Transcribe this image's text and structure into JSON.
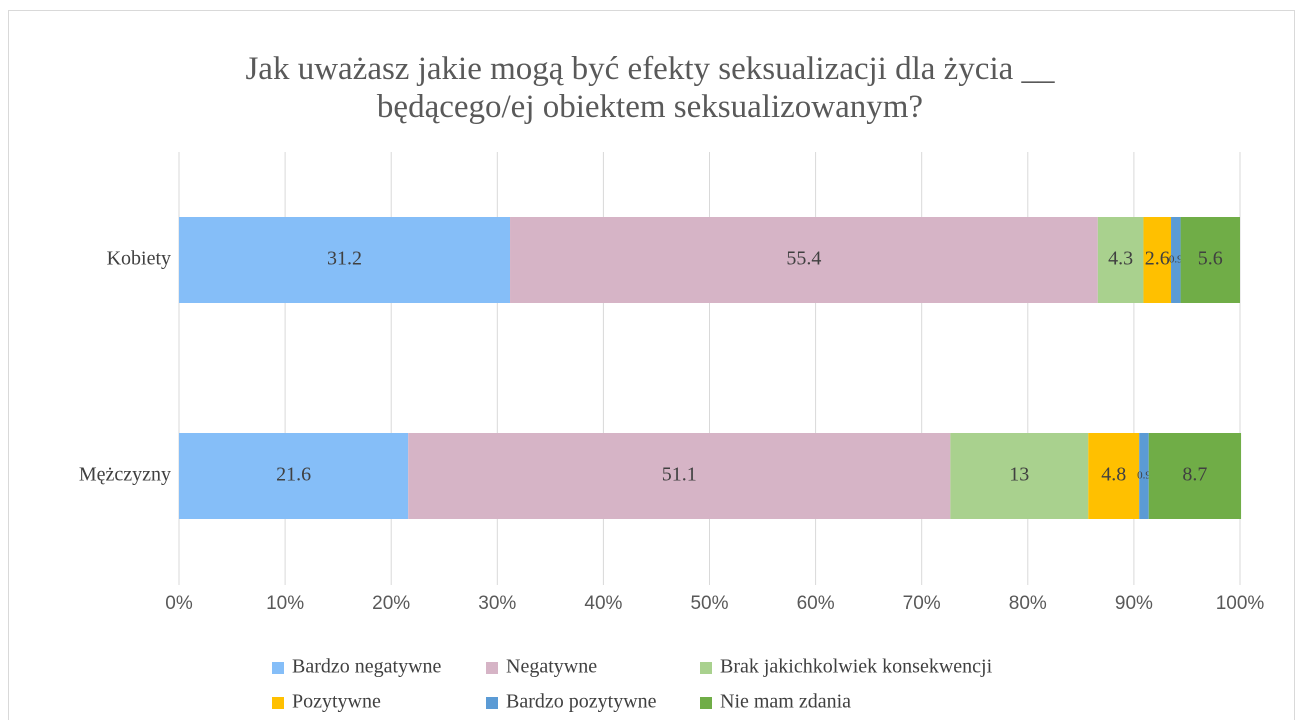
{
  "chart_data": {
    "type": "stacked_barh",
    "title": "Jak uważasz jakie mogą być efekty seksualizacji dla życia __ będącego/ej obiektem seksualizowanym?",
    "categories": [
      "Kobiety",
      "Mężczyzny"
    ],
    "series": [
      {
        "name": "Bardzo negatywne",
        "color": "#85bef8",
        "values": [
          31.2,
          21.6
        ]
      },
      {
        "name": "Negatywne",
        "color": "#d6b4c6",
        "values": [
          55.4,
          51.1
        ]
      },
      {
        "name": "Brak jakichkolwiek konsekwencji",
        "color": "#a9d18e",
        "values": [
          4.3,
          13
        ]
      },
      {
        "name": "Pozytywne",
        "color": "#ffc000",
        "values": [
          2.6,
          4.8
        ]
      },
      {
        "name": "Bardzo pozytywne",
        "color": "#5b9bd5",
        "values": [
          0.9,
          0.9
        ]
      },
      {
        "name": "Nie mam zdania",
        "color": "#70ad47",
        "values": [
          5.6,
          8.7
        ]
      }
    ],
    "xlim": [
      0,
      100
    ],
    "xticks": [
      {
        "value": 0,
        "label": "0%"
      },
      {
        "value": 10,
        "label": "10%"
      },
      {
        "value": 20,
        "label": "20%"
      },
      {
        "value": 30,
        "label": "30%"
      },
      {
        "value": 40,
        "label": "40%"
      },
      {
        "value": 50,
        "label": "50%"
      },
      {
        "value": 60,
        "label": "60%"
      },
      {
        "value": 70,
        "label": "70%"
      },
      {
        "value": 80,
        "label": "80%"
      },
      {
        "value": 90,
        "label": "90%"
      },
      {
        "value": 100,
        "label": "100%"
      }
    ],
    "grid": true,
    "legend": "bottom"
  }
}
